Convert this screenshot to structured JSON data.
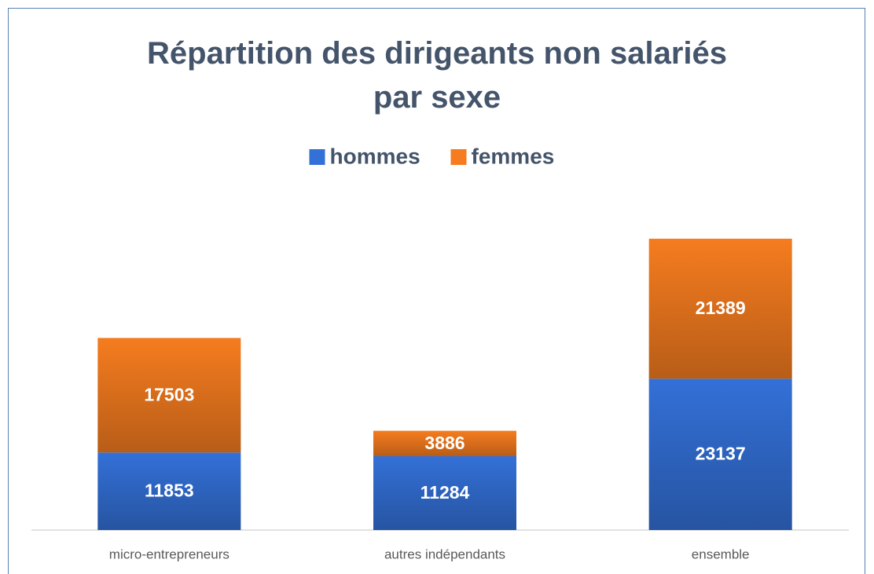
{
  "chart_data": {
    "type": "stacked_bar",
    "title": "Répartition des dirigeants non salariés par sexe",
    "categories": [
      "micro-entrepreneurs",
      "autres indépendants",
      "ensemble"
    ],
    "series": [
      {
        "name": "hommes",
        "color": "#3370d7",
        "values": [
          11853,
          11284,
          23137
        ]
      },
      {
        "name": "femmes",
        "color": "#f57c1f",
        "values": [
          17503,
          3886,
          21389
        ]
      }
    ],
    "legend": "top"
  }
}
